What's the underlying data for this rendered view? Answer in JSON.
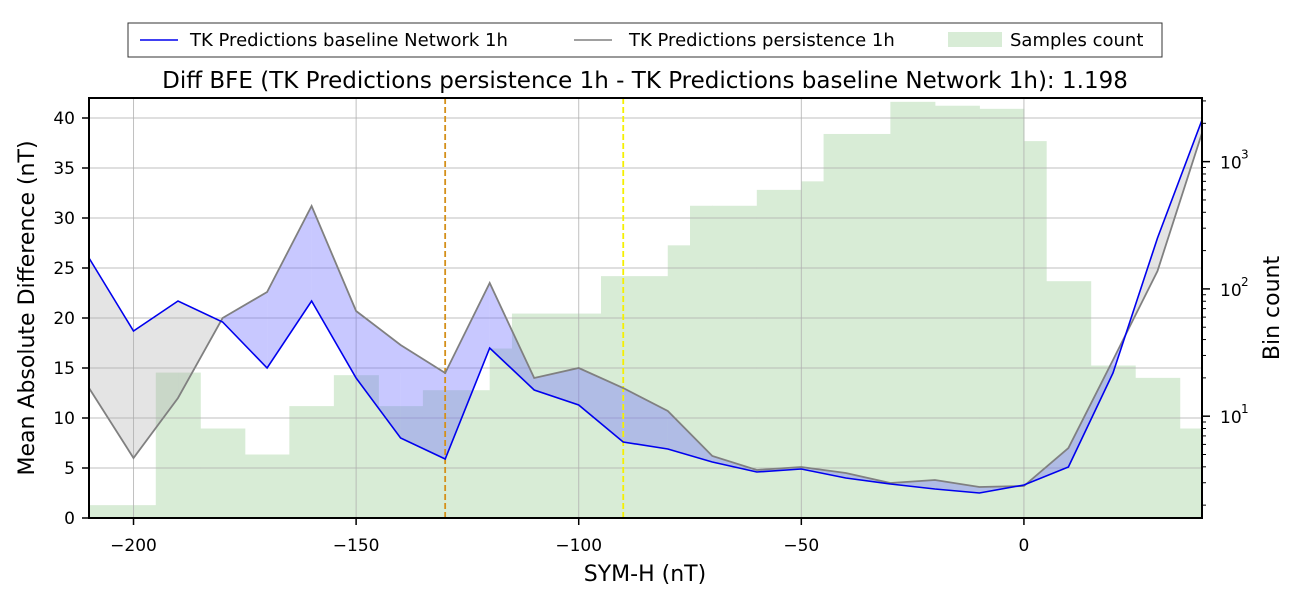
{
  "chart_data": {
    "type": "line",
    "title": "Diff BFE (TK Predictions persistence 1h - TK Predictions baseline Network 1h): 1.198",
    "xlabel": "SYM-H (nT)",
    "ylabel": "Mean Absolute Difference (nT)",
    "y2label": "Bin count",
    "xlim": [
      -210,
      40
    ],
    "ylim": [
      0,
      42
    ],
    "y2lim_log10": [
      0.2,
      3.5
    ],
    "y2scale": "log",
    "grid": true,
    "legend_position": "top-center",
    "x_ticks": [
      -200,
      -150,
      -100,
      -50,
      0
    ],
    "x_tick_labels": [
      "−200",
      "−150",
      "−100",
      "−50",
      "0"
    ],
    "y_ticks": [
      0,
      5,
      10,
      15,
      20,
      25,
      30,
      35,
      40
    ],
    "y_tick_labels": [
      "0",
      "5",
      "10",
      "15",
      "20",
      "25",
      "30",
      "35",
      "40"
    ],
    "y2_ticks": [
      1,
      2,
      3
    ],
    "y2_tick_labels": [
      "10",
      "10",
      "10"
    ],
    "y2_tick_exponents": [
      "1",
      "2",
      "3"
    ],
    "legend": [
      {
        "label": "TK Predictions baseline Network 1h",
        "kind": "line",
        "color": "#0000ee"
      },
      {
        "label": "TK Predictions persistence 1h",
        "kind": "line",
        "color": "#808080"
      },
      {
        "label": "Samples count",
        "kind": "patch",
        "color": "#d8ecd6"
      }
    ],
    "x": [
      -210,
      -200,
      -190,
      -180,
      -170,
      -160,
      -150,
      -140,
      -130,
      -120,
      -110,
      -100,
      -90,
      -80,
      -70,
      -60,
      -50,
      -40,
      -30,
      -20,
      -10,
      0,
      10,
      20,
      30,
      40
    ],
    "series": [
      {
        "name": "TK Predictions baseline Network 1h",
        "color": "#0000ee",
        "values": [
          26.0,
          18.7,
          21.7,
          19.6,
          15.0,
          21.7,
          14.0,
          8.0,
          5.9,
          17.0,
          12.8,
          11.3,
          7.6,
          6.9,
          5.6,
          4.6,
          4.9,
          4.0,
          3.4,
          2.9,
          2.5,
          3.3,
          5.1,
          14.5,
          28.0,
          39.8
        ]
      },
      {
        "name": "TK Predictions persistence 1h",
        "color": "#808080",
        "values": [
          13.0,
          6.0,
          12.0,
          20.0,
          22.6,
          31.2,
          20.7,
          17.3,
          14.5,
          23.5,
          14.0,
          15.0,
          13.0,
          10.7,
          6.2,
          4.8,
          5.1,
          4.5,
          3.5,
          3.8,
          3.1,
          3.2,
          7.0,
          15.8,
          24.7,
          38.5
        ]
      }
    ],
    "histogram": {
      "name": "Samples count",
      "color": "#d8ecd6",
      "bin_edges": [
        -210,
        -195,
        -185,
        -175,
        -165,
        -155,
        -145,
        -135,
        -125,
        -120,
        -115,
        -100,
        -95,
        -90,
        -80,
        -75,
        -70,
        -60,
        -50,
        -45,
        -35,
        -30,
        -20,
        -10,
        0,
        5,
        15,
        20,
        25,
        35,
        40
      ],
      "counts": [
        2,
        22,
        8,
        5,
        12,
        21,
        12,
        16,
        16,
        34,
        64,
        64,
        126,
        126,
        220,
        450,
        450,
        600,
        700,
        1650,
        1650,
        2950,
        2750,
        2600,
        1450,
        115,
        25,
        25,
        20,
        8
      ]
    },
    "vertical_lines": [
      {
        "x": -130,
        "color": "#d4901a",
        "style": "dashed"
      },
      {
        "x": -90,
        "color": "#f5f000",
        "style": "dashed"
      }
    ]
  }
}
